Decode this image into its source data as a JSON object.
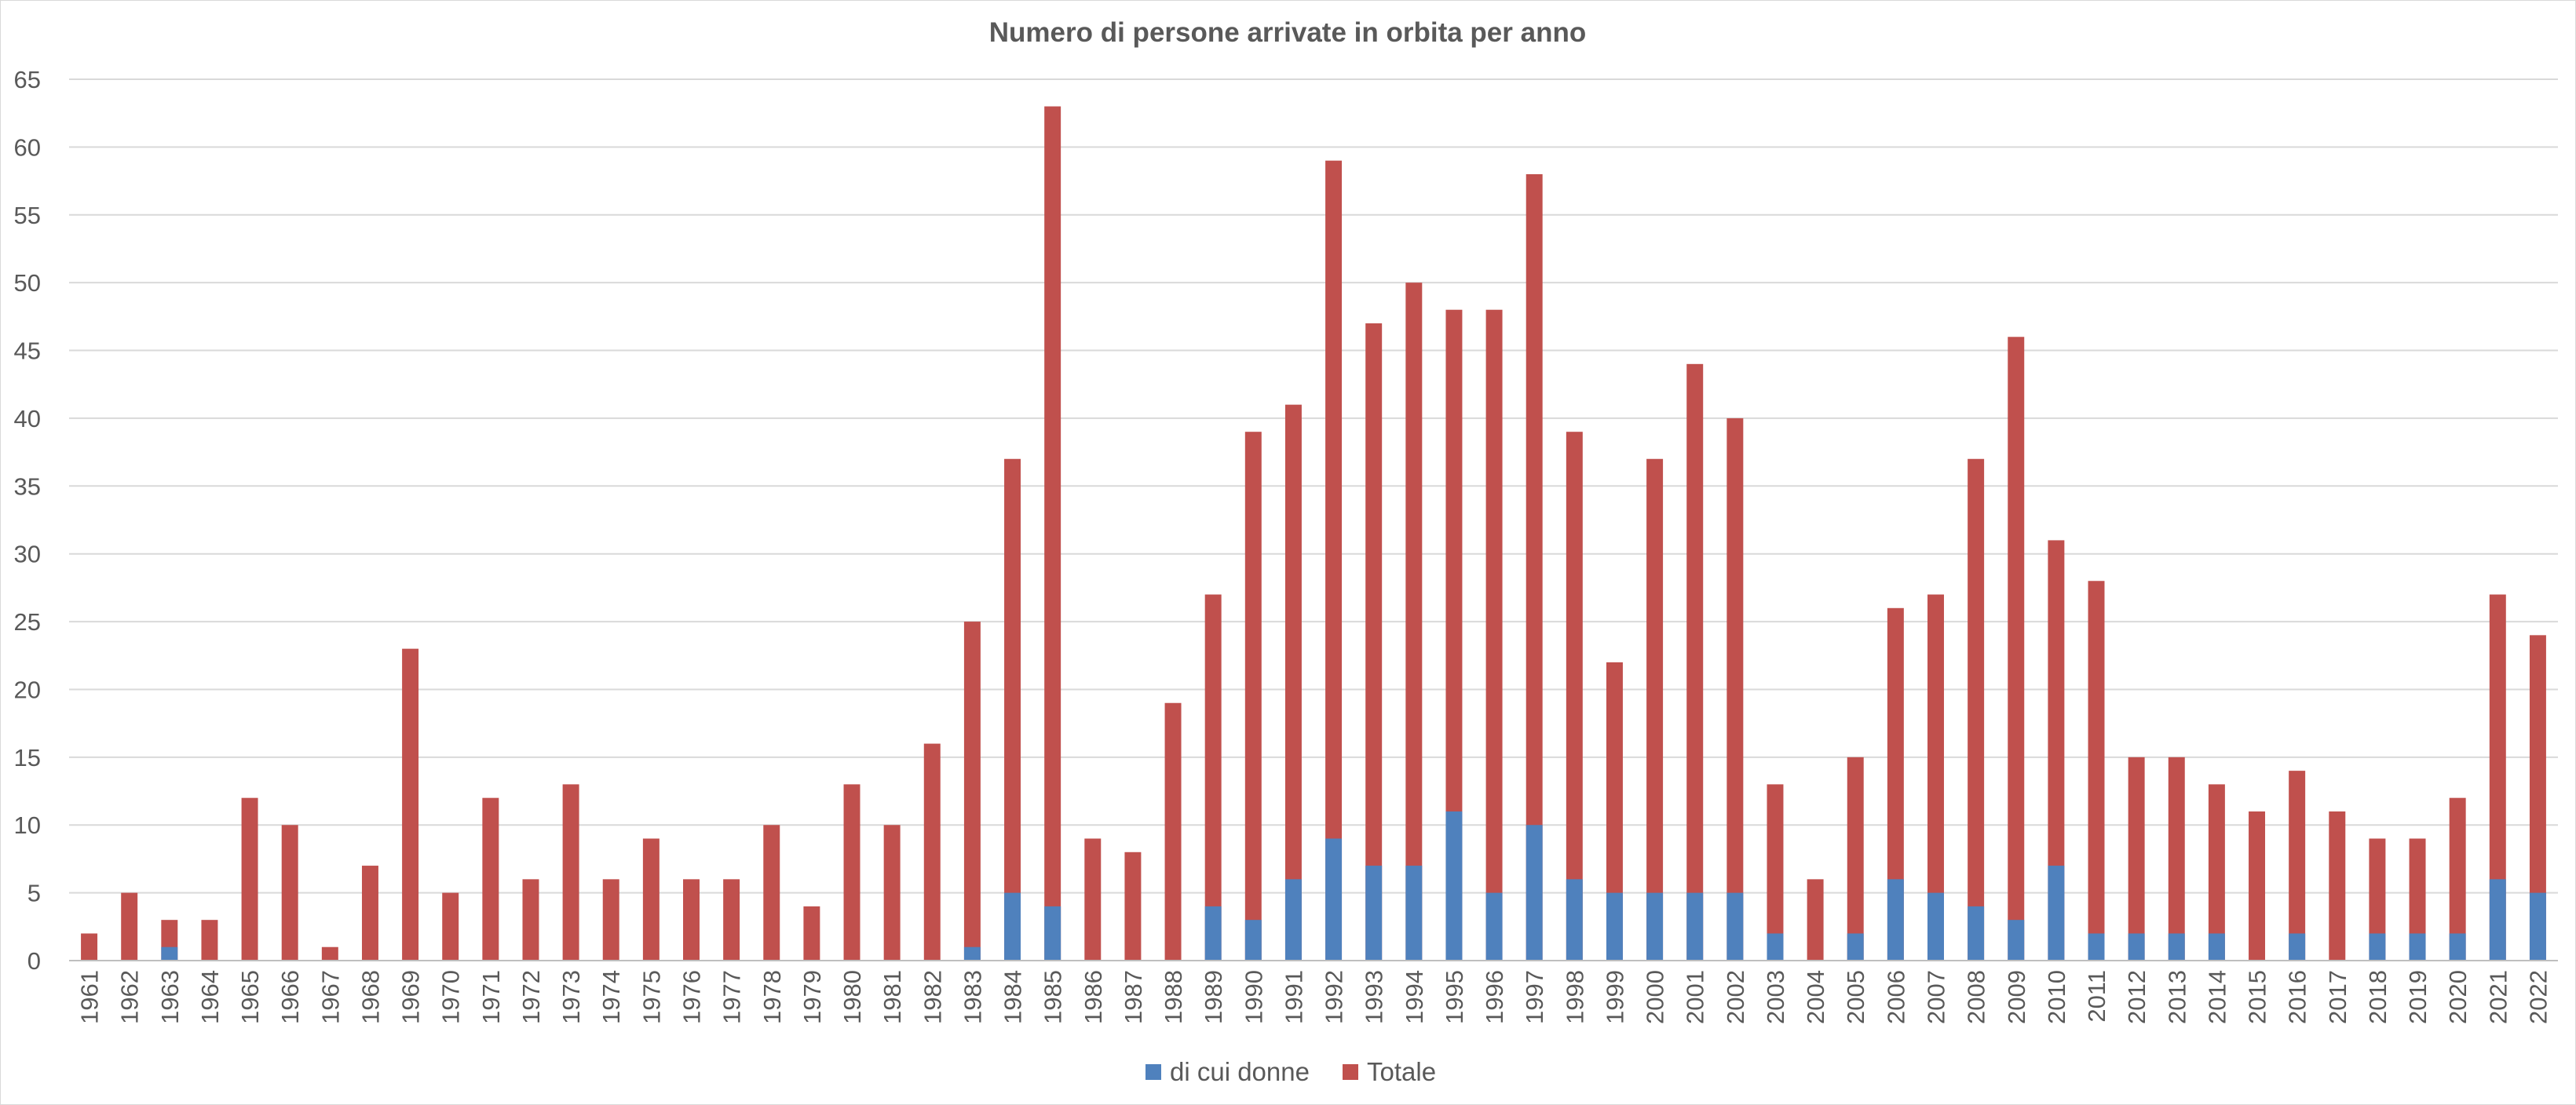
{
  "chart_data": {
    "type": "bar",
    "title": "Numero di persone arrivate in orbita per anno",
    "xlabel": "",
    "ylabel": "",
    "ylim": [
      0,
      65
    ],
    "yticks": [
      0,
      5,
      10,
      15,
      20,
      25,
      30,
      35,
      40,
      45,
      50,
      55,
      60,
      65
    ],
    "grid": true,
    "legend_position": "bottom",
    "categories": [
      "1961",
      "1962",
      "1963",
      "1964",
      "1965",
      "1966",
      "1967",
      "1968",
      "1969",
      "1970",
      "1971",
      "1972",
      "1973",
      "1974",
      "1975",
      "1976",
      "1977",
      "1978",
      "1979",
      "1980",
      "1981",
      "1982",
      "1983",
      "1984",
      "1985",
      "1986",
      "1987",
      "1988",
      "1989",
      "1990",
      "1991",
      "1992",
      "1993",
      "1994",
      "1995",
      "1996",
      "1997",
      "1998",
      "1999",
      "2000",
      "2001",
      "2002",
      "2003",
      "2004",
      "2005",
      "2006",
      "2007",
      "2008",
      "2009",
      "2010",
      "2011",
      "2012",
      "2013",
      "2014",
      "2015",
      "2016",
      "2017",
      "2018",
      "2019",
      "2020",
      "2021",
      "2022"
    ],
    "series": [
      {
        "name": "di cui donne",
        "color": "#4f81bd",
        "values": [
          0,
          0,
          1,
          0,
          0,
          0,
          0,
          0,
          0,
          0,
          0,
          0,
          0,
          0,
          0,
          0,
          0,
          0,
          0,
          0,
          0,
          0,
          1,
          5,
          4,
          0,
          0,
          0,
          4,
          3,
          6,
          9,
          7,
          7,
          11,
          5,
          10,
          6,
          5,
          5,
          5,
          5,
          2,
          0,
          2,
          6,
          5,
          4,
          3,
          7,
          2,
          2,
          2,
          2,
          0,
          2,
          0,
          2,
          2,
          2,
          6,
          5
        ]
      },
      {
        "name": "Totale",
        "color": "#c0504d",
        "values": [
          2,
          5,
          3,
          3,
          12,
          10,
          1,
          7,
          23,
          5,
          12,
          6,
          13,
          6,
          9,
          6,
          6,
          10,
          4,
          13,
          10,
          16,
          25,
          37,
          63,
          9,
          8,
          19,
          27,
          39,
          41,
          59,
          47,
          50,
          48,
          48,
          58,
          39,
          22,
          37,
          44,
          40,
          13,
          6,
          15,
          26,
          27,
          37,
          46,
          31,
          28,
          15,
          15,
          13,
          11,
          14,
          11,
          9,
          9,
          12,
          27,
          24
        ]
      }
    ]
  }
}
